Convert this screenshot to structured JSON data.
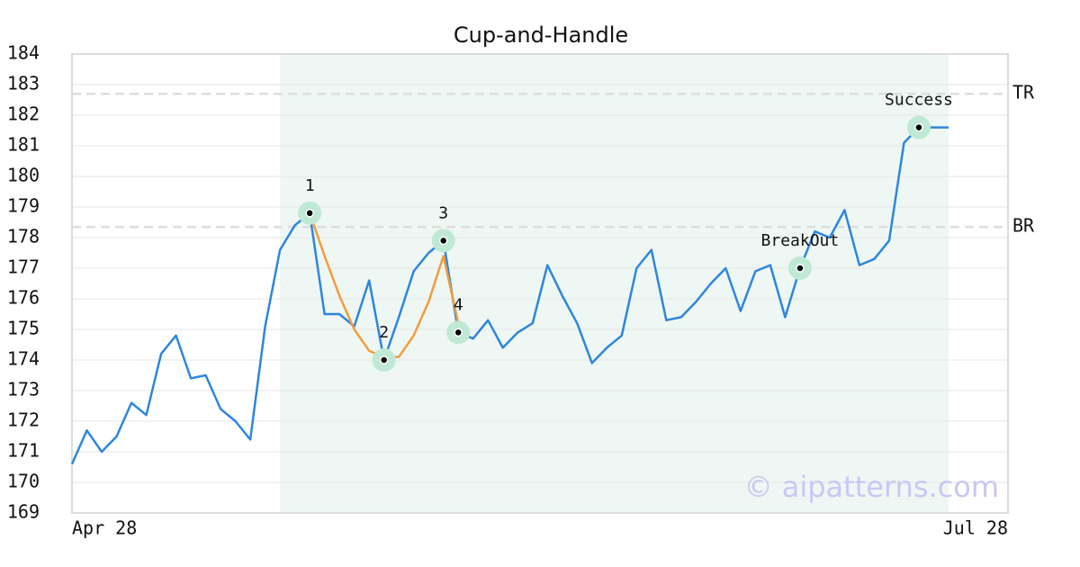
{
  "chart_data": {
    "type": "line",
    "title": "Cup-and-Handle",
    "watermark": "© aipatterns.com",
    "xlim": [
      0,
      63
    ],
    "xticks": [
      {
        "value": 0,
        "label": "Apr 28"
      },
      {
        "value": 63,
        "label": "Jul 28"
      }
    ],
    "ylim": [
      169,
      184
    ],
    "yticks": [
      169,
      170,
      171,
      172,
      173,
      174,
      175,
      176,
      177,
      178,
      179,
      180,
      181,
      182,
      183,
      184
    ],
    "grid": true,
    "highlight": [
      14,
      59
    ],
    "highlight_color": "#eef7f3",
    "series": [
      {
        "color": "#2e86de",
        "x": [
          0,
          1,
          2,
          3,
          4,
          5,
          6,
          7,
          8,
          9,
          10,
          11,
          12,
          13,
          14,
          15,
          16,
          17,
          18,
          19,
          20,
          21,
          22,
          23,
          24,
          25,
          26,
          27,
          28,
          29,
          30,
          31,
          32,
          33,
          34,
          35,
          36,
          37,
          38,
          39,
          40,
          41,
          42,
          43,
          44,
          45,
          46,
          47,
          48,
          49,
          50,
          51,
          52,
          53,
          54,
          55,
          56,
          57,
          58,
          59
        ],
        "values": [
          170.6,
          171.7,
          171.0,
          171.5,
          172.6,
          172.2,
          174.2,
          174.8,
          173.4,
          173.5,
          172.4,
          172.0,
          171.4,
          175.1,
          177.6,
          178.4,
          178.8,
          175.5,
          175.5,
          175.1,
          176.6,
          174.0,
          175.4,
          176.9,
          177.5,
          177.9,
          174.9,
          174.7,
          175.3,
          174.4,
          174.9,
          175.2,
          177.1,
          176.1,
          175.2,
          173.9,
          174.4,
          174.8,
          177.0,
          177.6,
          175.3,
          175.4,
          175.9,
          176.5,
          177.0,
          175.6,
          176.9,
          177.1,
          175.4,
          177.0,
          178.2,
          178.0,
          178.9,
          177.1,
          177.3,
          177.9,
          181.1,
          181.6,
          181.6,
          181.6
        ]
      },
      {
        "color": "#f39c3d",
        "x": [
          16,
          17,
          18,
          19,
          20,
          21,
          22,
          23,
          24,
          25,
          26
        ],
        "values": [
          178.8,
          177.4,
          176.1,
          175.0,
          174.3,
          174.1,
          174.1,
          174.8,
          175.9,
          177.4,
          175.2
        ]
      }
    ],
    "levels": [
      {
        "label": "TR",
        "value": 182.7
      },
      {
        "label": "BR",
        "value": 178.35
      }
    ],
    "points": [
      {
        "label": "1",
        "x": 16,
        "value": 178.8
      },
      {
        "label": "2",
        "x": 21,
        "value": 174.0
      },
      {
        "label": "3",
        "x": 25,
        "value": 177.9
      },
      {
        "label": "4",
        "x": 26,
        "value": 174.9
      },
      {
        "label": "BreakOut",
        "x": 49,
        "value": 177.0
      },
      {
        "label": "Success",
        "x": 57,
        "value": 181.6
      }
    ]
  }
}
